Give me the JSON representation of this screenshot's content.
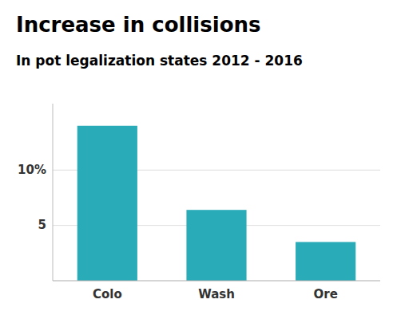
{
  "chart_data": {
    "type": "bar",
    "title": "Increase in collisions",
    "subtitle": "In pot legalization states 2012 - 2016",
    "categories": [
      "Colo",
      "Wash",
      "Ore"
    ],
    "values": [
      14.0,
      6.4,
      3.5
    ],
    "color": "#29ABB8",
    "ylim": [
      0,
      16
    ],
    "yticks": [
      5,
      {
        "value": 10,
        "label": "10%"
      }
    ],
    "grid": true
  }
}
